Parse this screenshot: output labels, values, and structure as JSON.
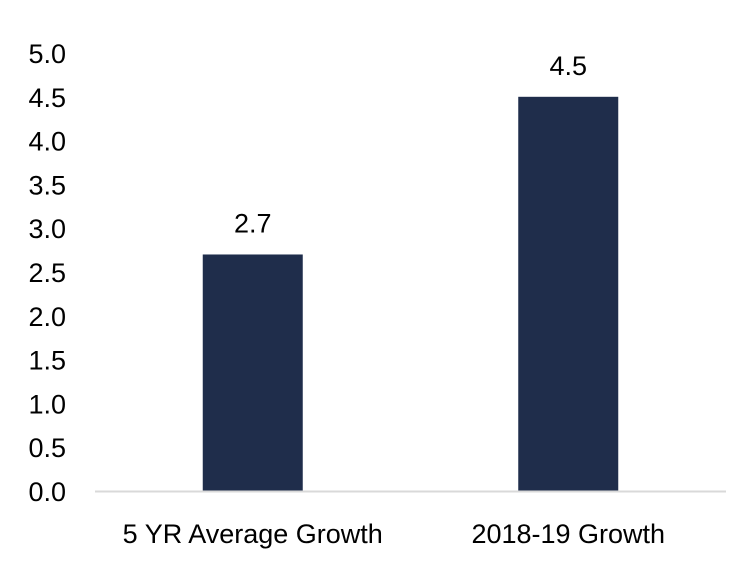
{
  "chart_data": {
    "type": "bar",
    "title": "",
    "xlabel": "",
    "ylabel": "",
    "categories": [
      "5 YR Average Growth",
      "2018-19 Growth"
    ],
    "values": [
      2.7,
      4.5
    ],
    "data_labels": [
      "2.7",
      "4.5"
    ],
    "ylim": [
      0,
      5.0
    ],
    "y_ticks": [
      0.0,
      0.5,
      1.0,
      1.5,
      2.0,
      2.5,
      3.0,
      3.5,
      4.0,
      4.5,
      5.0
    ],
    "y_tick_labels": [
      "0.0",
      "0.5",
      "1.0",
      "1.5",
      "2.0",
      "2.5",
      "3.0",
      "3.5",
      "4.0",
      "4.5",
      "5.0"
    ],
    "grid": false,
    "legend": "none",
    "colors": {
      "bar": "#1f2d4b",
      "axis": "#d9d9d9",
      "text": "#000000"
    }
  }
}
